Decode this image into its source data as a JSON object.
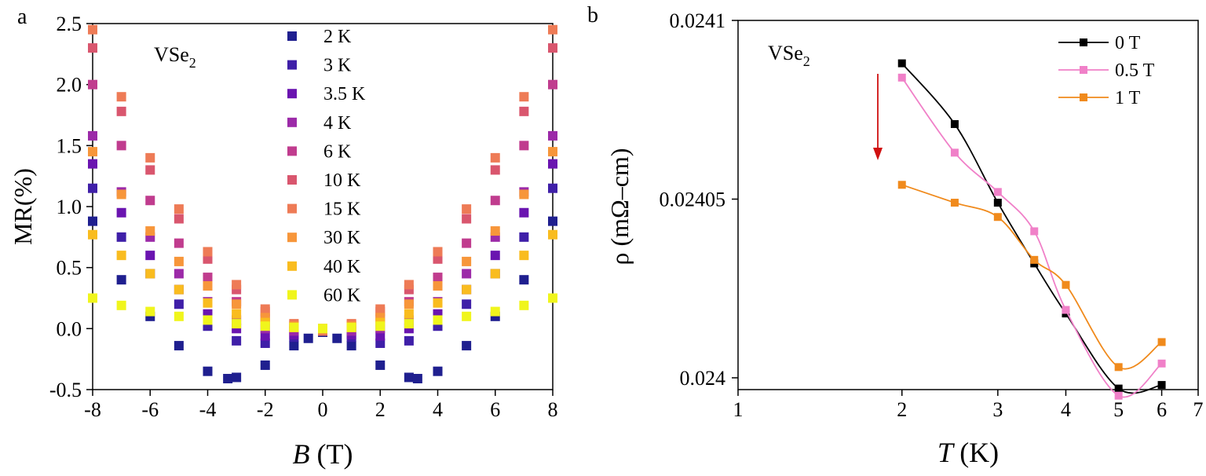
{
  "panels": {
    "a": {
      "label": "a",
      "annotation": "VSe",
      "annotation_sub": "2"
    },
    "b": {
      "label": "b",
      "annotation": "VSe",
      "annotation_sub": "2"
    }
  },
  "chart_data": [
    {
      "type": "scatter",
      "panel": "a",
      "xlabel": "B",
      "xlabel_unit": "(T)",
      "ylabel": "MR(%)",
      "xlim": [
        -8,
        8
      ],
      "ylim": [
        -0.5,
        2.5
      ],
      "xticks": [
        "-8",
        "-6",
        "-4",
        "-2",
        "0",
        "2",
        "4",
        "6",
        "8"
      ],
      "yticks": [
        "-0.5",
        "0.0",
        "0.5",
        "1.0",
        "1.5",
        "2.0",
        "2.5"
      ],
      "legend_position": "top-right",
      "marker": "square",
      "series": [
        {
          "name": "2 K",
          "color": "#1f1f8f",
          "x": [
            -8,
            -7,
            -6,
            -5,
            -4,
            -3.3,
            -3,
            -2,
            -1,
            -0.5,
            0,
            0.5,
            1,
            2,
            3,
            3.3,
            4,
            5,
            6,
            7,
            8
          ],
          "y": [
            0.88,
            0.4,
            0.1,
            -0.14,
            -0.35,
            -0.41,
            -0.4,
            -0.3,
            -0.14,
            -0.08,
            -0.03,
            -0.08,
            -0.14,
            -0.3,
            -0.4,
            -0.41,
            -0.35,
            -0.14,
            0.1,
            0.4,
            0.88
          ]
        },
        {
          "name": "3 K",
          "color": "#3f1fa8",
          "x": [
            -8,
            -7,
            -6,
            -5,
            -4,
            -3,
            -2,
            -1,
            0,
            1,
            2,
            3,
            4,
            5,
            6,
            7,
            8
          ],
          "y": [
            1.15,
            0.75,
            0.45,
            0.2,
            0.02,
            -0.1,
            -0.12,
            -0.07,
            -0.02,
            -0.07,
            -0.12,
            -0.1,
            0.02,
            0.2,
            0.45,
            0.75,
            1.15
          ]
        },
        {
          "name": "3.5 K",
          "color": "#6a14b0",
          "x": [
            -8,
            -7,
            -6,
            -5,
            -4,
            -3,
            -2,
            -1,
            0,
            1,
            2,
            3,
            4,
            5,
            6,
            7,
            8
          ],
          "y": [
            1.35,
            0.95,
            0.6,
            0.32,
            0.12,
            0,
            -0.06,
            -0.05,
            -0.02,
            -0.05,
            -0.06,
            0,
            0.12,
            0.32,
            0.6,
            0.95,
            1.35
          ]
        },
        {
          "name": "4 K",
          "color": "#9c2aa8",
          "x": [
            -8,
            -7,
            -6,
            -5,
            -4,
            -3,
            -2,
            -1,
            0,
            1,
            2,
            3,
            4,
            5,
            6,
            7,
            8
          ],
          "y": [
            1.58,
            1.12,
            0.75,
            0.45,
            0.22,
            0.07,
            0,
            -0.02,
            -0.02,
            -0.02,
            0,
            0.07,
            0.22,
            0.45,
            0.75,
            1.12,
            1.58
          ]
        },
        {
          "name": "6 K",
          "color": "#c03c8e",
          "x": [
            -8,
            -7,
            -6,
            -5,
            -4,
            -3,
            -2,
            -1,
            0,
            1,
            2,
            3,
            4,
            5,
            6,
            7,
            8
          ],
          "y": [
            2.0,
            1.5,
            1.05,
            0.7,
            0.42,
            0.22,
            0.08,
            0.01,
            -0.02,
            0.01,
            0.08,
            0.22,
            0.42,
            0.7,
            1.05,
            1.5,
            2.0
          ]
        },
        {
          "name": "10 K",
          "color": "#d9566e",
          "x": [
            -8,
            -7,
            -6,
            -5,
            -4,
            -3,
            -2,
            -1,
            0,
            1,
            2,
            3,
            4,
            5,
            6,
            7,
            8
          ],
          "y": [
            2.3,
            1.78,
            1.3,
            0.9,
            0.57,
            0.32,
            0.14,
            0.03,
            -0.02,
            0.03,
            0.14,
            0.32,
            0.57,
            0.9,
            1.3,
            1.78,
            2.3
          ]
        },
        {
          "name": "15 K",
          "color": "#ee7b56",
          "x": [
            -8,
            -7,
            -6,
            -5,
            -4,
            -3,
            -2,
            -1,
            0,
            1,
            2,
            3,
            4,
            5,
            6,
            7,
            8
          ],
          "y": [
            2.45,
            1.9,
            1.4,
            0.98,
            0.63,
            0.36,
            0.16,
            0.04,
            -0.02,
            0.04,
            0.16,
            0.36,
            0.63,
            0.98,
            1.4,
            1.9,
            2.45
          ]
        },
        {
          "name": "30 K",
          "color": "#f7963a",
          "x": [
            -8,
            -7,
            -6,
            -5,
            -4,
            -3,
            -2,
            -1,
            0,
            1,
            2,
            3,
            4,
            5,
            6,
            7,
            8
          ],
          "y": [
            1.45,
            1.1,
            0.8,
            0.55,
            0.35,
            0.2,
            0.09,
            0.02,
            0,
            0.02,
            0.09,
            0.2,
            0.35,
            0.55,
            0.8,
            1.1,
            1.45
          ]
        },
        {
          "name": "40 K",
          "color": "#f9bc1f",
          "x": [
            -8,
            -7,
            -6,
            -5,
            -4,
            -3,
            -2,
            -1,
            0,
            1,
            2,
            3,
            4,
            5,
            6,
            7,
            8
          ],
          "y": [
            0.77,
            0.6,
            0.45,
            0.32,
            0.21,
            0.12,
            0.05,
            0.01,
            0,
            0.01,
            0.05,
            0.12,
            0.21,
            0.32,
            0.45,
            0.6,
            0.77
          ]
        },
        {
          "name": "60 K",
          "color": "#f0f51c",
          "x": [
            -8,
            -7,
            -6,
            -5,
            -4,
            -3,
            -2,
            -1,
            0,
            1,
            2,
            3,
            4,
            5,
            6,
            7,
            8
          ],
          "y": [
            0.25,
            0.19,
            0.14,
            0.1,
            0.07,
            0.04,
            0.02,
            0.01,
            0,
            0.01,
            0.02,
            0.04,
            0.07,
            0.1,
            0.14,
            0.19,
            0.25
          ]
        }
      ]
    },
    {
      "type": "line",
      "panel": "b",
      "xscale": "log",
      "xlabel": "T",
      "xlabel_unit": "(K)",
      "ylabel": "ρ (mΩ–cm)",
      "xlim": [
        1,
        7
      ],
      "ylim": [
        0.0239967,
        0.0241
      ],
      "xticks": [
        "1",
        "2",
        "3",
        "4",
        "5",
        "6",
        "7"
      ],
      "yticks": [
        "0.024",
        "0.02405",
        "0.0241"
      ],
      "legend_position": "top-right",
      "marker": "square",
      "series": [
        {
          "name": "0 T",
          "color": "#000000",
          "x": [
            2,
            2.5,
            3,
            3.5,
            4,
            5,
            6
          ],
          "y": [
            0.024088,
            0.024071,
            0.024049,
            0.024032,
            0.024018,
            0.023997,
            0.023998
          ]
        },
        {
          "name": "0.5 T",
          "color": "#f080c8",
          "x": [
            2,
            2.5,
            3,
            3.5,
            4,
            5,
            6
          ],
          "y": [
            0.024084,
            0.024063,
            0.024052,
            0.024041,
            0.024019,
            0.023995,
            0.024004
          ]
        },
        {
          "name": "1 T",
          "color": "#f08a1c",
          "x": [
            2,
            2.5,
            3,
            3.5,
            4,
            5,
            6
          ],
          "y": [
            0.024054,
            0.024049,
            0.024045,
            0.024033,
            0.024026,
            0.024003,
            0.02401
          ]
        }
      ],
      "annotation_arrow": {
        "color": "#d01010",
        "direction": "down"
      }
    }
  ]
}
